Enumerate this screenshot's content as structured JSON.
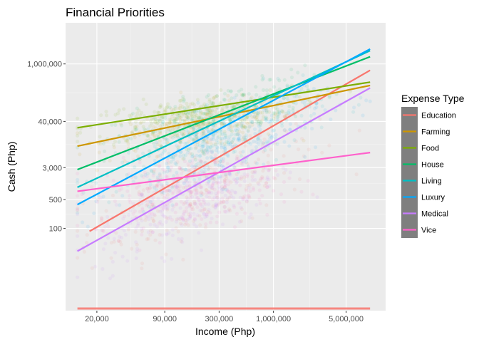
{
  "chart_data": {
    "type": "scatter",
    "title": "Financial Priorities",
    "xlabel": "Income (Php)",
    "ylabel": "Cash (Php)",
    "x_scale": "log",
    "y_scale": "log",
    "xlim": [
      10000,
      12000000
    ],
    "ylim": [
      1,
      10000000
    ],
    "x_ticks": [
      {
        "value": 20000,
        "label": "20,000"
      },
      {
        "value": 90000,
        "label": "90,000"
      },
      {
        "value": 300000,
        "label": "300,000"
      },
      {
        "value": 1000000,
        "label": "1,000,000"
      },
      {
        "value": 5000000,
        "label": "5,000,000"
      }
    ],
    "y_ticks": [
      {
        "value": 100,
        "label": "100"
      },
      {
        "value": 500,
        "label": "500"
      },
      {
        "value": 3000,
        "label": "3,000"
      },
      {
        "value": 40000,
        "label": "40,000"
      },
      {
        "value": 1000000,
        "label": "1,000,000"
      }
    ],
    "grid": true,
    "legend_title": "Expense Type",
    "legend_position": "right",
    "series": [
      {
        "name": "Education",
        "color": "#F8766D",
        "trend": {
          "x": [
            17000,
            8500000
          ],
          "y": [
            85,
            700000
          ]
        },
        "cloud_center": [
          200000,
          1000
        ],
        "cloud_spread": [
          1.0,
          1.1
        ]
      },
      {
        "name": "Farming",
        "color": "#CD9600",
        "trend": {
          "x": [
            13000,
            8500000
          ],
          "y": [
            10000,
            300000
          ]
        },
        "cloud_center": [
          200000,
          30000
        ],
        "cloud_spread": [
          0.8,
          0.5
        ]
      },
      {
        "name": "Food",
        "color": "#7CAE00",
        "trend": {
          "x": [
            13000,
            8500000
          ],
          "y": [
            28000,
            360000
          ]
        },
        "cloud_center": [
          150000,
          50000
        ],
        "cloud_spread": [
          0.9,
          0.45
        ]
      },
      {
        "name": "House",
        "color": "#00BE67",
        "trend": {
          "x": [
            13000,
            8500000
          ],
          "y": [
            2700,
            1500000
          ]
        },
        "cloud_center": [
          300000,
          60000
        ],
        "cloud_spread": [
          0.9,
          0.55
        ]
      },
      {
        "name": "Living",
        "color": "#00BFC4",
        "trend": {
          "x": [
            13000,
            8500000
          ],
          "y": [
            1000,
            2100000
          ]
        },
        "cloud_center": [
          300000,
          15000
        ],
        "cloud_spread": [
          0.9,
          0.7
        ]
      },
      {
        "name": "Luxury",
        "color": "#00A9FF",
        "trend": {
          "x": [
            13000,
            8500000
          ],
          "y": [
            380,
            2300000
          ]
        },
        "cloud_center": [
          300000,
          8000
        ],
        "cloud_spread": [
          0.9,
          0.8
        ]
      },
      {
        "name": "Medical",
        "color": "#C77CFF",
        "trend": {
          "x": [
            13000,
            8500000
          ],
          "y": [
            28,
            260000
          ]
        },
        "cloud_center": [
          150000,
          400
        ],
        "cloud_spread": [
          0.8,
          0.9
        ]
      },
      {
        "name": "Vice",
        "color": "#FF61CC",
        "trend": {
          "x": [
            13000,
            8500000
          ],
          "y": [
            800,
            7000
          ]
        },
        "cloud_center": [
          150000,
          800
        ],
        "cloud_spread": [
          0.8,
          0.8
        ]
      }
    ]
  }
}
